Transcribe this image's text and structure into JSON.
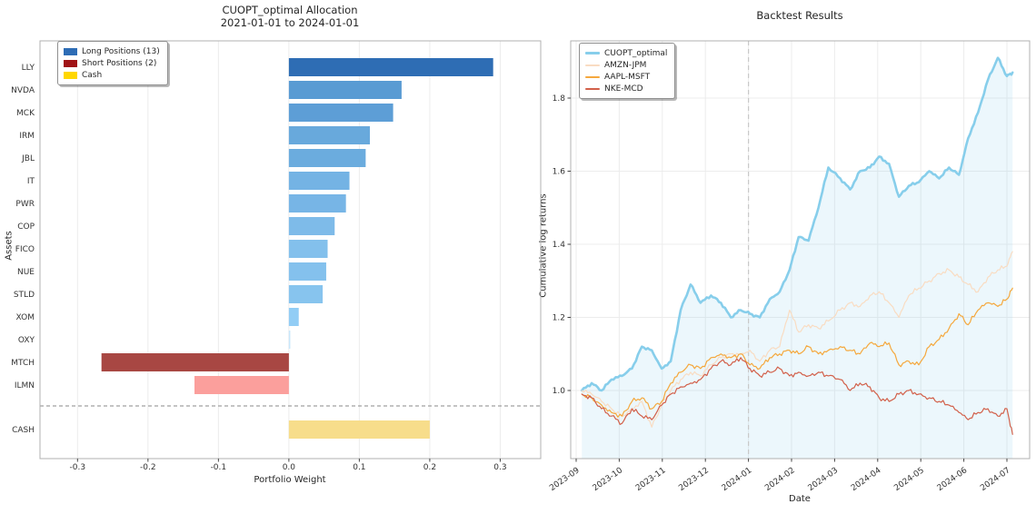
{
  "figure": {
    "background": "#ffffff",
    "spine_color": "#b0b0b0",
    "grid_color": "#ececec",
    "tick_text_color": "#333333"
  },
  "chart_data": [
    {
      "type": "bar",
      "orientation": "horizontal",
      "title_lines": [
        "CUOPT_optimal Allocation",
        "2021-01-01 to 2024-01-01"
      ],
      "xlabel": "Portfolio Weight",
      "ylabel": "Assets",
      "xlim": [
        -0.3533,
        0.3575
      ],
      "xticks": [
        "-0.3",
        "-0.2",
        "-0.1",
        "0.0",
        "0.1",
        "0.2",
        "0.3"
      ],
      "xtick_values": [
        -0.3,
        -0.2,
        -0.1,
        0.0,
        0.1,
        0.2,
        0.3
      ],
      "grid": "vertical-faint",
      "legend_position": "upper-left",
      "legend": [
        {
          "label": "Long Positions (13)",
          "color": "#2d6cb5"
        },
        {
          "label": "Short Positions (2)",
          "color": "#a01316"
        },
        {
          "label": "Cash",
          "color": "#ffd700"
        }
      ],
      "separator": {
        "style": "dashed",
        "color": "#8a8a8a",
        "between": [
          "ILMN",
          "CASH"
        ]
      },
      "bars": [
        {
          "label": "LLY",
          "value": 0.29,
          "group": "long",
          "color": "#2e6db4"
        },
        {
          "label": "NVDA",
          "value": 0.16,
          "group": "long",
          "color": "#599bd3"
        },
        {
          "label": "MCK",
          "value": 0.148,
          "group": "long",
          "color": "#5d9ed6"
        },
        {
          "label": "IRM",
          "value": 0.115,
          "group": "long",
          "color": "#68a9dc"
        },
        {
          "label": "JBL",
          "value": 0.109,
          "group": "long",
          "color": "#6bacde"
        },
        {
          "label": "IT",
          "value": 0.086,
          "group": "long",
          "color": "#74b3e4"
        },
        {
          "label": "PWR",
          "value": 0.081,
          "group": "long",
          "color": "#77b5e6"
        },
        {
          "label": "COP",
          "value": 0.065,
          "group": "long",
          "color": "#7ebbe9"
        },
        {
          "label": "FICO",
          "value": 0.055,
          "group": "long",
          "color": "#83c0ec"
        },
        {
          "label": "NUE",
          "value": 0.053,
          "group": "long",
          "color": "#84c1ed"
        },
        {
          "label": "STLD",
          "value": 0.048,
          "group": "long",
          "color": "#87c4ee"
        },
        {
          "label": "XOM",
          "value": 0.014,
          "group": "long",
          "color": "#92cdf5"
        },
        {
          "label": "OXY",
          "value": 0.002,
          "group": "long",
          "color": "#c9e8fb"
        },
        {
          "label": "MTCH",
          "value": -0.266,
          "group": "short",
          "color": "#a84743"
        },
        {
          "label": "ILMN",
          "value": -0.134,
          "group": "short",
          "color": "#fb9f9c"
        },
        {
          "label": "CASH",
          "value": 0.2,
          "group": "cash",
          "color": "#f7dd8b"
        }
      ]
    },
    {
      "type": "line",
      "title": "Backtest Results",
      "xlabel": "Date",
      "ylabel": "Cumulative log returns",
      "yticks": [
        "1.0",
        "1.2",
        "1.4",
        "1.6",
        "1.8"
      ],
      "ytick_values": [
        1.0,
        1.2,
        1.4,
        1.6,
        1.8
      ],
      "xticks": [
        "2023-09",
        "2023-10",
        "2023-11",
        "2023-12",
        "2024-01",
        "2024-02",
        "2024-03",
        "2024-04",
        "2024-05",
        "2024-06",
        "2024-07"
      ],
      "grid": "both-faint",
      "legend_position": "upper-left",
      "vline": {
        "x": "2024-01-01",
        "style": "dashed",
        "color": "#c9c9c9"
      },
      "fill_under_series": "CUOPT_optimal",
      "fill_color": "#87ceeb",
      "fill_opacity": 0.16,
      "dates": [
        "2023-09-05",
        "2023-09-12",
        "2023-09-19",
        "2023-09-26",
        "2023-10-03",
        "2023-10-10",
        "2023-10-17",
        "2023-10-24",
        "2023-10-31",
        "2023-11-07",
        "2023-11-14",
        "2023-11-21",
        "2023-11-28",
        "2023-12-05",
        "2023-12-12",
        "2023-12-19",
        "2023-12-26",
        "2024-01-02",
        "2024-01-09",
        "2024-01-16",
        "2024-01-23",
        "2024-01-30",
        "2024-02-06",
        "2024-02-13",
        "2024-02-20",
        "2024-02-27",
        "2024-03-05",
        "2024-03-12",
        "2024-03-19",
        "2024-03-26",
        "2024-04-02",
        "2024-04-09",
        "2024-04-16",
        "2024-04-23",
        "2024-04-30",
        "2024-05-07",
        "2024-05-14",
        "2024-05-21",
        "2024-05-28",
        "2024-06-04",
        "2024-06-11",
        "2024-06-18",
        "2024-06-25",
        "2024-07-01",
        "2024-07-05"
      ],
      "series": [
        {
          "name": "CUOPT_optimal",
          "color": "#87ceeb",
          "line_width": 2.6,
          "values": [
            1.0,
            1.02,
            1.0,
            1.03,
            1.04,
            1.06,
            1.12,
            1.11,
            1.06,
            1.08,
            1.22,
            1.29,
            1.24,
            1.26,
            1.24,
            1.2,
            1.22,
            1.21,
            1.2,
            1.25,
            1.27,
            1.33,
            1.42,
            1.41,
            1.5,
            1.61,
            1.58,
            1.55,
            1.6,
            1.61,
            1.64,
            1.62,
            1.53,
            1.56,
            1.57,
            1.6,
            1.58,
            1.61,
            1.59,
            1.69,
            1.76,
            1.85,
            1.91,
            1.86,
            1.87
          ]
        },
        {
          "name": "AMZN-JPM",
          "color": "#f9dcc2",
          "line_width": 1.2,
          "values": [
            1.0,
            0.99,
            0.97,
            0.95,
            0.93,
            0.95,
            0.97,
            0.9,
            0.96,
            1.0,
            1.03,
            1.05,
            1.04,
            1.07,
            1.09,
            1.1,
            1.1,
            1.11,
            1.08,
            1.11,
            1.12,
            1.22,
            1.16,
            1.18,
            1.17,
            1.19,
            1.22,
            1.24,
            1.23,
            1.26,
            1.27,
            1.24,
            1.2,
            1.26,
            1.28,
            1.3,
            1.32,
            1.33,
            1.31,
            1.29,
            1.27,
            1.31,
            1.33,
            1.34,
            1.38
          ]
        },
        {
          "name": "AAPL-MSFT",
          "color": "#f5a83d",
          "line_width": 1.2,
          "values": [
            0.99,
            0.98,
            0.96,
            0.94,
            0.93,
            0.97,
            0.98,
            0.95,
            0.97,
            1.02,
            1.05,
            1.07,
            1.06,
            1.09,
            1.1,
            1.09,
            1.1,
            1.07,
            1.06,
            1.09,
            1.1,
            1.11,
            1.1,
            1.12,
            1.1,
            1.11,
            1.12,
            1.11,
            1.1,
            1.13,
            1.12,
            1.13,
            1.07,
            1.08,
            1.07,
            1.12,
            1.14,
            1.17,
            1.21,
            1.18,
            1.22,
            1.24,
            1.23,
            1.25,
            1.28
          ]
        },
        {
          "name": "NKE-MCD",
          "color": "#d2604a",
          "line_width": 1.2,
          "values": [
            0.99,
            0.98,
            0.95,
            0.93,
            0.91,
            0.95,
            0.93,
            0.92,
            0.96,
            0.99,
            1.01,
            1.02,
            1.03,
            1.06,
            1.08,
            1.07,
            1.09,
            1.06,
            1.04,
            1.05,
            1.06,
            1.04,
            1.05,
            1.04,
            1.05,
            1.04,
            1.03,
            1.0,
            1.02,
            1.01,
            0.98,
            0.97,
            0.99,
            1.0,
            0.99,
            0.98,
            0.97,
            0.96,
            0.94,
            0.92,
            0.94,
            0.95,
            0.93,
            0.95,
            0.88
          ]
        }
      ]
    }
  ]
}
